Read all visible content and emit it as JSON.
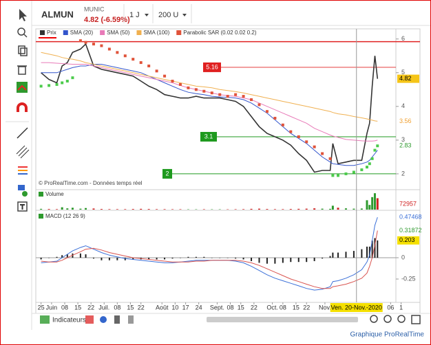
{
  "header": {
    "symbol": "ALMUN",
    "name": "MUNIC",
    "price_change": "4.82 (-6.59%)",
    "period": "1 J",
    "units": "200 U"
  },
  "chart_data": [
    {
      "type": "line",
      "watermark": "© ProRealTime.com - Données temps réel",
      "x": [
        0,
        3,
        6,
        8,
        10,
        12,
        15,
        17,
        20,
        23,
        26,
        29,
        32,
        35,
        38,
        41,
        44,
        47,
        50,
        53,
        56,
        59,
        62,
        65,
        68,
        71,
        74,
        77,
        80,
        83,
        86,
        89,
        92,
        95,
        98,
        101,
        104,
        107,
        110,
        111,
        113,
        116,
        119,
        122,
        124,
        125,
        126,
        127,
        128
      ],
      "xlim": [
        -2,
        135
      ],
      "ylim": [
        1.55,
        6.3
      ],
      "yticks": [
        6,
        5,
        4,
        3,
        2
      ],
      "grid": false,
      "series": [
        {
          "name": "Prix",
          "color": "#333333",
          "values": [
            5.0,
            4.8,
            4.7,
            5.2,
            5.3,
            5.6,
            5.7,
            5.85,
            5.2,
            5.1,
            5.05,
            5.0,
            4.95,
            4.9,
            4.75,
            4.6,
            4.5,
            4.35,
            4.3,
            4.25,
            4.25,
            4.3,
            4.25,
            4.25,
            4.25,
            4.2,
            4.15,
            4.0,
            3.7,
            3.4,
            3.2,
            3.1,
            3.0,
            2.85,
            2.6,
            2.4,
            2.05,
            2.1,
            2.1,
            2.9,
            2.3,
            2.35,
            2.4,
            2.4,
            3.2,
            3.5,
            4.6,
            5.5,
            4.82
          ]
        },
        {
          "name": "SMA (20)",
          "color": "#3355cc",
          "values": [
            5.0,
            5.0,
            5.0,
            5.05,
            5.1,
            5.15,
            5.2,
            5.2,
            5.25,
            5.25,
            5.2,
            5.15,
            5.1,
            5.05,
            5.0,
            4.9,
            4.8,
            4.7,
            4.6,
            4.5,
            4.42,
            4.38,
            4.35,
            4.3,
            4.28,
            4.27,
            4.25,
            4.2,
            4.1,
            3.95,
            3.8,
            3.6,
            3.4,
            3.2,
            3.05,
            2.9,
            2.7,
            2.5,
            2.35,
            2.3,
            2.28,
            2.25,
            2.25,
            2.3,
            2.35,
            2.4,
            2.5,
            2.6,
            2.7
          ]
        },
        {
          "name": "SMA (50)",
          "color": "#e87ab8",
          "values": [
            5.3,
            5.3,
            5.28,
            5.27,
            5.26,
            5.25,
            5.25,
            5.25,
            5.2,
            5.15,
            5.1,
            5.05,
            5.0,
            4.95,
            4.9,
            4.85,
            4.8,
            4.75,
            4.7,
            4.62,
            4.55,
            4.5,
            4.45,
            4.4,
            4.35,
            4.32,
            4.3,
            4.25,
            4.2,
            4.1,
            4.0,
            3.9,
            3.8,
            3.7,
            3.6,
            3.5,
            3.35,
            3.25,
            3.15,
            3.12,
            3.08,
            3.02,
            3.0,
            2.98,
            2.97,
            2.97,
            2.97,
            2.98,
            3.0
          ]
        },
        {
          "name": "SMA (100)",
          "color": "#f0b050",
          "values": [
            5.6,
            5.55,
            5.5,
            5.45,
            5.42,
            5.4,
            5.35,
            5.3,
            5.25,
            5.2,
            5.15,
            5.1,
            5.05,
            5.0,
            4.95,
            4.9,
            4.85,
            4.8,
            4.75,
            4.7,
            4.65,
            4.6,
            4.58,
            4.55,
            4.5,
            4.47,
            4.44,
            4.4,
            4.35,
            4.3,
            4.25,
            4.2,
            4.15,
            4.1,
            4.05,
            4.0,
            3.95,
            3.9,
            3.85,
            3.82,
            3.78,
            3.75,
            3.7,
            3.66,
            3.63,
            3.61,
            3.59,
            3.57,
            3.56
          ]
        },
        {
          "name": "Parabolic SAR (0.02 0.02 0.2)",
          "type": "scatter",
          "color": "#e0533a",
          "color_below": "#4ccb4c",
          "values": [
            4.6,
            4.62,
            4.65,
            4.7,
            4.75,
            4.85,
            5.95,
            5.9,
            5.85,
            5.8,
            5.7,
            5.6,
            5.5,
            5.4,
            5.3,
            5.2,
            5.05,
            4.9,
            4.75,
            4.65,
            4.55,
            4.5,
            4.45,
            4.4,
            4.35,
            4.3,
            4.35,
            4.3,
            4.2,
            4.05,
            3.85,
            3.65,
            3.45,
            3.25,
            3.1,
            2.95,
            2.8,
            2.6,
            2.45,
            1.95,
            1.95,
            2.0,
            2.05,
            2.12,
            2.2,
            2.3,
            2.45,
            2.7,
            2.83
          ]
        }
      ],
      "resistance": {
        "value": 5.92,
        "color": "#e02020"
      },
      "levels": [
        {
          "value": 5.16,
          "color": "#e02020"
        },
        {
          "value": 3.1,
          "color": "#1e9a1e"
        },
        {
          "value": 2,
          "color": "#1e9a1e"
        }
      ]
    },
    {
      "type": "bar",
      "title": "Volume",
      "x": [
        0,
        3,
        6,
        8,
        10,
        12,
        15,
        17,
        20,
        23,
        26,
        29,
        32,
        35,
        38,
        41,
        44,
        47,
        50,
        53,
        56,
        59,
        62,
        65,
        68,
        71,
        74,
        77,
        80,
        83,
        86,
        89,
        92,
        95,
        98,
        101,
        104,
        107,
        110,
        111,
        113,
        116,
        119,
        122,
        124,
        125,
        126,
        127,
        128
      ],
      "xlim": [
        -2,
        135
      ],
      "ylim": [
        0,
        110000
      ],
      "up_color": "#2e9a2e",
      "down_color": "#d02020",
      "values": [
        5000,
        4000,
        3000,
        15000,
        8000,
        12000,
        6000,
        10000,
        7000,
        4000,
        3000,
        3000,
        3000,
        4000,
        5000,
        4000,
        3000,
        3000,
        2500,
        2500,
        2000,
        2000,
        2500,
        2000,
        2000,
        2000,
        2500,
        3000,
        5000,
        6000,
        4000,
        3000,
        3000,
        4000,
        5000,
        6000,
        8000,
        6000,
        5000,
        25000,
        12000,
        8000,
        6000,
        7000,
        60000,
        30000,
        80000,
        105000,
        72957
      ]
    },
    {
      "type": "line",
      "title": "MACD (12 26 9)",
      "x": [
        0,
        3,
        6,
        8,
        10,
        12,
        15,
        17,
        20,
        23,
        26,
        29,
        32,
        35,
        38,
        41,
        44,
        47,
        50,
        53,
        56,
        59,
        62,
        65,
        68,
        71,
        74,
        77,
        80,
        83,
        86,
        89,
        92,
        95,
        98,
        101,
        104,
        107,
        110,
        111,
        113,
        116,
        119,
        122,
        124,
        125,
        126,
        127,
        128
      ],
      "xlim": [
        -2,
        135
      ],
      "ylim": [
        -0.524,
        0.54
      ],
      "yticks": [
        0,
        -0.25
      ],
      "series": [
        {
          "color": "#3a6fd8",
          "values": [
            -0.06,
            -0.05,
            -0.04,
            0.0,
            0.04,
            0.08,
            0.12,
            0.14,
            0.1,
            0.06,
            0.03,
            0.01,
            -0.01,
            -0.02,
            -0.03,
            -0.04,
            -0.05,
            -0.06,
            -0.06,
            -0.05,
            -0.04,
            -0.03,
            -0.03,
            -0.03,
            -0.03,
            -0.03,
            -0.04,
            -0.06,
            -0.1,
            -0.15,
            -0.2,
            -0.24,
            -0.27,
            -0.3,
            -0.33,
            -0.36,
            -0.38,
            -0.37,
            -0.34,
            -0.28,
            -0.27,
            -0.24,
            -0.2,
            -0.14,
            -0.05,
            0.03,
            0.2,
            0.38,
            0.47468
          ]
        },
        {
          "color": "#d9534f",
          "values": [
            -0.04,
            -0.05,
            -0.05,
            -0.03,
            0.0,
            0.03,
            0.07,
            0.1,
            0.11,
            0.09,
            0.06,
            0.04,
            0.02,
            0.0,
            -0.01,
            -0.02,
            -0.03,
            -0.04,
            -0.05,
            -0.05,
            -0.05,
            -0.04,
            -0.04,
            -0.03,
            -0.03,
            -0.03,
            -0.03,
            -0.04,
            -0.06,
            -0.09,
            -0.13,
            -0.17,
            -0.21,
            -0.25,
            -0.28,
            -0.31,
            -0.34,
            -0.36,
            -0.36,
            -0.34,
            -0.33,
            -0.31,
            -0.28,
            -0.24,
            -0.18,
            -0.1,
            0.0,
            0.15,
            0.31872
          ]
        }
      ],
      "histogram": {
        "color": "#222222",
        "values": [
          -0.02,
          0.0,
          0.01,
          0.03,
          0.04,
          0.05,
          0.05,
          0.04,
          -0.01,
          -0.03,
          -0.03,
          -0.03,
          -0.03,
          -0.02,
          -0.02,
          -0.02,
          -0.02,
          -0.02,
          -0.01,
          0.0,
          0.01,
          0.01,
          0.01,
          0.0,
          0.0,
          0.0,
          -0.01,
          -0.02,
          -0.04,
          -0.06,
          -0.07,
          -0.07,
          -0.06,
          -0.05,
          -0.05,
          -0.05,
          -0.04,
          -0.01,
          0.02,
          0.06,
          0.06,
          0.07,
          0.08,
          0.1,
          0.13,
          0.13,
          0.2,
          0.23,
          0.203
        ]
      },
      "xticks": [
        {
          "value": 0,
          "label": "25"
        },
        {
          "value": 4,
          "label": "Juin"
        },
        {
          "value": 9,
          "label": "08"
        },
        {
          "value": 14,
          "label": "15"
        },
        {
          "value": 19,
          "label": "22"
        },
        {
          "value": 24,
          "label": "Juil."
        },
        {
          "value": 29,
          "label": "08"
        },
        {
          "value": 34,
          "label": "15"
        },
        {
          "value": 38,
          "label": "22"
        },
        {
          "value": 46,
          "label": "Août"
        },
        {
          "value": 51,
          "label": "10"
        },
        {
          "value": 55,
          "label": "17"
        },
        {
          "value": 60,
          "label": "24"
        },
        {
          "value": 67,
          "label": "Sept."
        },
        {
          "value": 72,
          "label": "08"
        },
        {
          "value": 76,
          "label": "15"
        },
        {
          "value": 81,
          "label": "22"
        },
        {
          "value": 88,
          "label": "Oct."
        },
        {
          "value": 92,
          "label": "08"
        },
        {
          "value": 97,
          "label": "15"
        },
        {
          "value": 101,
          "label": "22"
        },
        {
          "value": 108,
          "label": "Nov."
        },
        {
          "value": 133,
          "label": "06"
        },
        {
          "value": 137,
          "label": "1"
        }
      ],
      "cursor": {
        "value": 120,
        "label": "Ven. 20-Nov.-2020"
      }
    }
  ],
  "footer": {
    "indicators": "Indicateurs",
    "credit": "Graphique ProRealTime"
  }
}
